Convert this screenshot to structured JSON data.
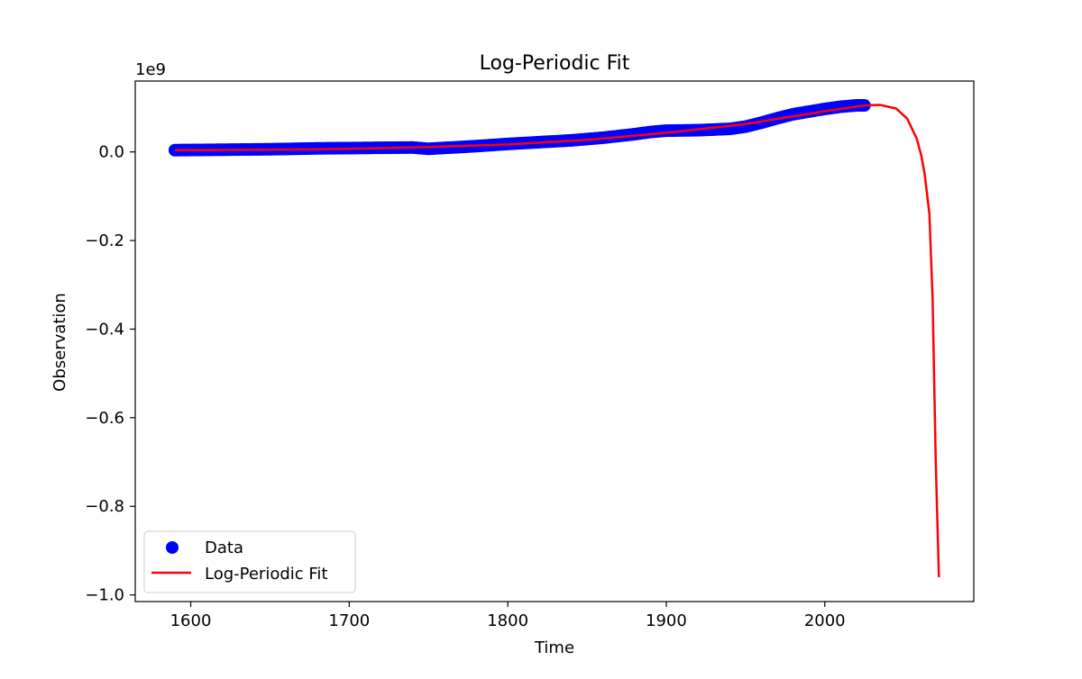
{
  "chart_data": {
    "type": "scatter",
    "title": "Log-Periodic Fit",
    "xlabel": "Time",
    "ylabel": "Observation",
    "y_offset_label": "1e9",
    "y_scale": 1000000000,
    "xlim": [
      1565,
      2094
    ],
    "ylim": [
      -1.015,
      0.16
    ],
    "x_ticks": [
      1600,
      1700,
      1800,
      1900,
      2000
    ],
    "y_ticks": [
      0.0,
      -0.2,
      -0.4,
      -0.6,
      -0.8,
      -1.0
    ],
    "y_tick_labels": [
      "0.0",
      "−0.2",
      "−0.4",
      "−0.6",
      "−0.8",
      "−1.0"
    ],
    "x_tick_labels": [
      "1600",
      "1700",
      "1800",
      "1900",
      "2000"
    ],
    "grid": false,
    "legend_position": "lower-left",
    "series": [
      {
        "name": "Data",
        "kind": "scatter",
        "color": "#0000ff",
        "x": [
          1590,
          1620,
          1650,
          1680,
          1710,
          1740,
          1750,
          1760,
          1780,
          1800,
          1820,
          1840,
          1860,
          1880,
          1890,
          1900,
          1920,
          1940,
          1950,
          1960,
          1970,
          1980,
          1990,
          2000,
          2010,
          2020,
          2025
        ],
        "y": [
          0.004,
          0.005,
          0.006,
          0.008,
          0.009,
          0.01,
          0.007,
          0.009,
          0.013,
          0.018,
          0.022,
          0.026,
          0.032,
          0.04,
          0.045,
          0.048,
          0.049,
          0.052,
          0.057,
          0.066,
          0.076,
          0.085,
          0.091,
          0.097,
          0.102,
          0.105,
          0.105
        ]
      },
      {
        "name": "Log-Periodic Fit",
        "kind": "line",
        "color": "#ff0000",
        "x": [
          1590,
          1650,
          1700,
          1750,
          1800,
          1850,
          1900,
          1950,
          2000,
          2025,
          2035,
          2045,
          2052,
          2058,
          2061,
          2063,
          2066,
          2068,
          2070,
          2072
        ],
        "y": [
          0.004,
          0.005,
          0.007,
          0.011,
          0.017,
          0.027,
          0.043,
          0.063,
          0.092,
          0.105,
          0.106,
          0.098,
          0.075,
          0.03,
          -0.01,
          -0.05,
          -0.14,
          -0.33,
          -0.7,
          -0.96
        ]
      }
    ]
  }
}
